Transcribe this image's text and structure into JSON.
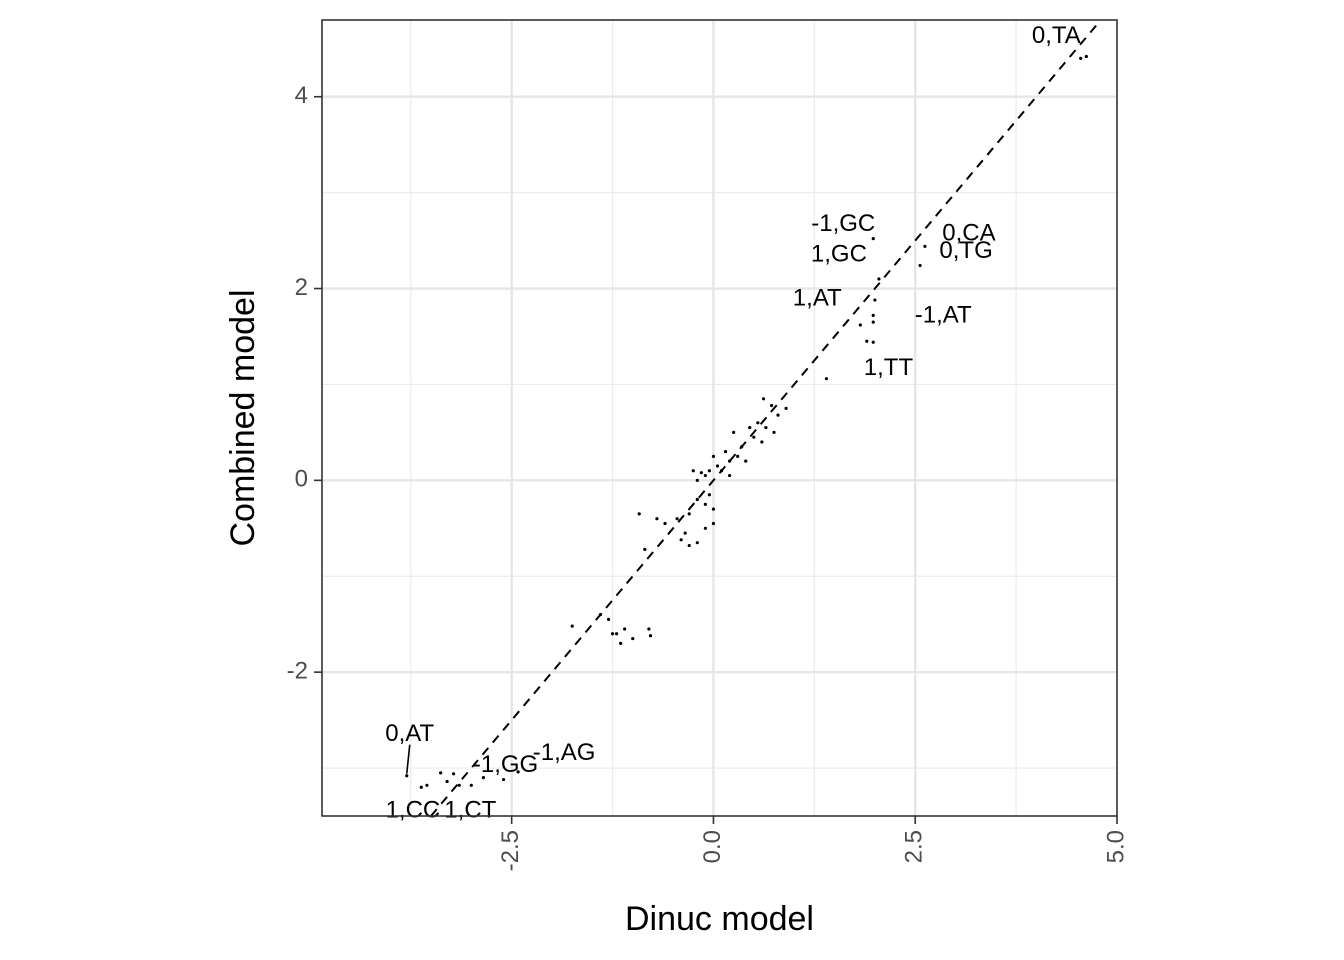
{
  "chart_data": {
    "type": "scatter",
    "title": "",
    "xlabel": "Dinuc model",
    "ylabel": "Combined model",
    "xlim": [
      -4.85,
      5.0
    ],
    "ylim": [
      -3.5,
      4.8
    ],
    "xticks": [
      -2.5,
      0.0,
      2.5,
      5.0
    ],
    "xtick_labels": [
      "-2.5",
      "0.0",
      "2.5",
      "5.0"
    ],
    "yticks": [
      -2,
      0,
      2,
      4
    ],
    "ytick_labels": [
      "-2",
      "0",
      "2",
      "4"
    ],
    "grid": true,
    "reference_line": {
      "slope": 1,
      "intercept": 0,
      "style": "dashed"
    },
    "points": [
      {
        "x": 4.62,
        "y": 4.42,
        "label": "0,TA"
      },
      {
        "x": 1.98,
        "y": 2.52,
        "label": "-1,GC"
      },
      {
        "x": 2.62,
        "y": 2.44,
        "label": "0,CA"
      },
      {
        "x": 2.05,
        "y": 2.1,
        "label": "1,GC"
      },
      {
        "x": 2.56,
        "y": 2.24,
        "label": "0,TG"
      },
      {
        "x": 1.98,
        "y": 1.72,
        "label": "1,AT"
      },
      {
        "x": 1.98,
        "y": 1.44,
        "label": "-1,AT"
      },
      {
        "x": 1.4,
        "y": 1.06,
        "label": "1,TT"
      },
      {
        "x": -3.8,
        "y": -3.08,
        "label": "0,AT"
      },
      {
        "x": -3.22,
        "y": -3.06,
        "label": "-1,GG"
      },
      {
        "x": -2.42,
        "y": -3.04,
        "label": "-1,AG"
      },
      {
        "x": -3.55,
        "y": -3.18,
        "label": "1,CC"
      },
      {
        "x": -3.0,
        "y": -3.18,
        "label": "1,CT"
      },
      {
        "x": 4.55,
        "y": 4.4
      },
      {
        "x": 1.9,
        "y": 1.45
      },
      {
        "x": 2.0,
        "y": 1.88
      },
      {
        "x": 1.82,
        "y": 1.62
      },
      {
        "x": 1.98,
        "y": 1.65
      },
      {
        "x": 0.72,
        "y": 0.78
      },
      {
        "x": 0.8,
        "y": 0.68
      },
      {
        "x": 0.9,
        "y": 0.75
      },
      {
        "x": 0.62,
        "y": 0.85
      },
      {
        "x": 0.55,
        "y": 0.6
      },
      {
        "x": 0.45,
        "y": 0.55
      },
      {
        "x": 0.5,
        "y": 0.45
      },
      {
        "x": 0.6,
        "y": 0.4
      },
      {
        "x": 0.35,
        "y": 0.35
      },
      {
        "x": 0.25,
        "y": 0.5
      },
      {
        "x": 0.3,
        "y": 0.25
      },
      {
        "x": 0.2,
        "y": 0.2
      },
      {
        "x": 0.15,
        "y": 0.3
      },
      {
        "x": 0.1,
        "y": 0.1
      },
      {
        "x": 0.05,
        "y": 0.15
      },
      {
        "x": 0.0,
        "y": 0.25
      },
      {
        "x": -0.05,
        "y": 0.1
      },
      {
        "x": -0.1,
        "y": 0.05
      },
      {
        "x": -0.15,
        "y": 0.08
      },
      {
        "x": -0.2,
        "y": 0.0
      },
      {
        "x": -0.25,
        "y": 0.1
      },
      {
        "x": 0.2,
        "y": 0.05
      },
      {
        "x": 0.4,
        "y": 0.2
      },
      {
        "x": 0.65,
        "y": 0.55
      },
      {
        "x": 0.75,
        "y": 0.5
      },
      {
        "x": -0.05,
        "y": -0.15
      },
      {
        "x": -0.1,
        "y": -0.25
      },
      {
        "x": -0.2,
        "y": -0.2
      },
      {
        "x": 0.0,
        "y": -0.3
      },
      {
        "x": -0.3,
        "y": -0.35
      },
      {
        "x": -0.45,
        "y": -0.4
      },
      {
        "x": -0.6,
        "y": -0.45
      },
      {
        "x": -0.7,
        "y": -0.4
      },
      {
        "x": -0.92,
        "y": -0.35
      },
      {
        "x": -0.85,
        "y": -0.72
      },
      {
        "x": -0.4,
        "y": -0.62
      },
      {
        "x": -0.3,
        "y": -0.68
      },
      {
        "x": -0.2,
        "y": -0.65
      },
      {
        "x": -0.1,
        "y": -0.5
      },
      {
        "x": 0.0,
        "y": -0.45
      },
      {
        "x": -0.35,
        "y": -0.55
      },
      {
        "x": -1.4,
        "y": -1.4
      },
      {
        "x": -1.3,
        "y": -1.45
      },
      {
        "x": -1.2,
        "y": -1.6
      },
      {
        "x": -1.1,
        "y": -1.55
      },
      {
        "x": -1.0,
        "y": -1.65
      },
      {
        "x": -0.8,
        "y": -1.55
      },
      {
        "x": -0.78,
        "y": -1.62
      },
      {
        "x": -1.25,
        "y": -1.6
      },
      {
        "x": -1.15,
        "y": -1.7
      },
      {
        "x": -1.75,
        "y": -1.52
      },
      {
        "x": -3.38,
        "y": -3.05
      },
      {
        "x": -3.15,
        "y": -3.18
      },
      {
        "x": -2.85,
        "y": -3.1
      },
      {
        "x": -2.6,
        "y": -3.12
      },
      {
        "x": -3.62,
        "y": -3.2
      },
      {
        "x": -3.3,
        "y": -3.14
      }
    ]
  }
}
